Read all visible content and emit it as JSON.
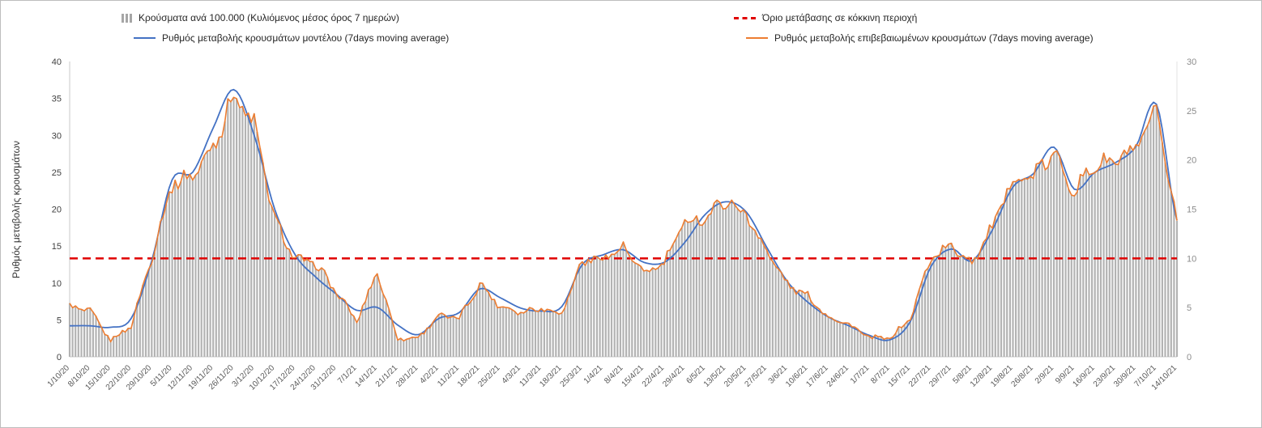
{
  "legend": {
    "items": [
      {
        "label": "Κρούσματα ανά 100.000 (Κυλιόμενος μέσος όρος 7 ημερών)",
        "marker": "bar",
        "color": "#a6a6a6"
      },
      {
        "label": "Όριο μετάβασης σε κόκκινη περιοχή",
        "marker": "dashed-line",
        "color": "#e00000"
      },
      {
        "label": "Ρυθμός μεταβολής κρουσμάτων μοντέλου (7days moving average)",
        "marker": "line",
        "color": "#4472c4"
      },
      {
        "label": "Ρυθμός μεταβολής επιβεβαιωμένων κρουσμάτων (7days moving average)",
        "marker": "line",
        "color": "#ed7d31"
      }
    ]
  },
  "chart_data": {
    "type": "combo",
    "title": "",
    "left_axis": {
      "title": "Ρυθμός μεταβολής κρουσμάτων",
      "min": 0,
      "max": 40,
      "tick_step": 5
    },
    "right_axis": {
      "title": "",
      "min": 0,
      "max": 30,
      "tick_step": 5
    },
    "threshold_line": {
      "label": "Όριο μετάβασης σε κόκκινη περιοχή",
      "value_left_axis": 13.33,
      "value_right_axis": 10,
      "style": "dashed",
      "color": "#e00000"
    },
    "x_tick_labels": [
      "1/10/20",
      "8/10/20",
      "15/10/20",
      "22/10/20",
      "29/10/20",
      "5/11/20",
      "12/11/20",
      "19/11/20",
      "26/11/20",
      "3/12/20",
      "10/12/20",
      "17/12/20",
      "24/12/20",
      "31/12/20",
      "7/1/21",
      "14/1/21",
      "21/1/21",
      "28/1/21",
      "4/2/21",
      "11/2/21",
      "18/2/21",
      "25/2/21",
      "4/3/21",
      "11/3/21",
      "18/3/21",
      "25/3/21",
      "1/4/21",
      "8/4/21",
      "15/4/21",
      "22/4/21",
      "29/4/21",
      "6/5/21",
      "13/5/21",
      "20/5/21",
      "27/5/21",
      "3/6/21",
      "10/6/21",
      "17/6/21",
      "24/6/21",
      "1/7/21",
      "8/7/21",
      "15/7/21",
      "22/7/21",
      "29/7/21",
      "5/8/21",
      "12/8/21",
      "19/8/21",
      "26/8/21",
      "2/9/21",
      "9/9/21",
      "16/9/21",
      "23/9/21",
      "30/9/21",
      "7/10/21",
      "14/10/21"
    ],
    "x_note": "daily bars between weekly tick labels",
    "series": [
      {
        "name": "Κρούσματα ανά 100.000 (Κυλιόμενος μέσος όρος 7 ημερών)",
        "type": "bar",
        "axis": "right",
        "color": "#b3b3b3",
        "weekly_values": [
          5.1,
          4.7,
          1.7,
          3.2,
          10.1,
          17.6,
          18.4,
          21.4,
          26.6,
          23.6,
          13.9,
          9.9,
          9.5,
          6.6,
          3.6,
          8.6,
          1.8,
          2.0,
          4.2,
          3.9,
          7.4,
          5.1,
          4.6,
          5.0,
          4.4,
          9.8,
          10.1,
          11.0,
          8.5,
          9.5,
          13.7,
          14.1,
          16.0,
          14.4,
          10.7,
          7.4,
          6.2,
          4.1,
          3.3,
          2.0,
          1.9,
          3.9,
          10.1,
          11.3,
          9.6,
          13.1,
          18.0,
          18.4,
          20.6,
          16.9,
          19.5,
          19.9,
          21.0,
          24.8,
          13.7
        ]
      },
      {
        "name": "Ρυθμός μεταβολής κρουσμάτων μοντέλου (7days moving average)",
        "type": "line",
        "axis": "left",
        "color": "#4472c4",
        "weekly_values": [
          4.2,
          4.2,
          4.0,
          5.2,
          13.0,
          24.0,
          25.0,
          31.0,
          36.2,
          30.0,
          20.0,
          13.8,
          10.8,
          8.5,
          6.3,
          6.7,
          4.3,
          3.0,
          5.2,
          6.0,
          9.2,
          8.0,
          6.6,
          6.2,
          6.8,
          12.5,
          13.8,
          14.5,
          12.8,
          12.8,
          15.5,
          19.3,
          21.0,
          19.6,
          14.8,
          10.2,
          7.4,
          5.4,
          4.2,
          2.9,
          2.3,
          4.8,
          12.2,
          14.6,
          13.0,
          17.2,
          23.0,
          24.8,
          28.4,
          22.7,
          25.0,
          26.3,
          28.5,
          34.2,
          18.5
        ]
      },
      {
        "name": "Ρυθμός μεταβολής επιβεβαιωμένων κρουσμάτων (7days moving average)",
        "type": "line",
        "axis": "left",
        "color": "#ed7d31",
        "weekly_values": [
          6.8,
          6.2,
          2.2,
          4.2,
          13.5,
          23.5,
          24.5,
          28.5,
          35.5,
          31.5,
          18.5,
          13.2,
          12.6,
          8.8,
          4.8,
          11.5,
          2.4,
          2.6,
          5.6,
          5.2,
          9.9,
          6.8,
          6.1,
          6.6,
          5.9,
          13.0,
          13.4,
          14.7,
          11.3,
          12.7,
          18.3,
          18.8,
          21.3,
          19.2,
          14.3,
          9.8,
          8.2,
          5.4,
          4.4,
          2.6,
          2.5,
          5.2,
          13.5,
          15.0,
          12.8,
          17.5,
          24.0,
          24.5,
          27.5,
          22.5,
          26.0,
          26.5,
          28.0,
          33.0,
          18.3
        ]
      }
    ]
  }
}
